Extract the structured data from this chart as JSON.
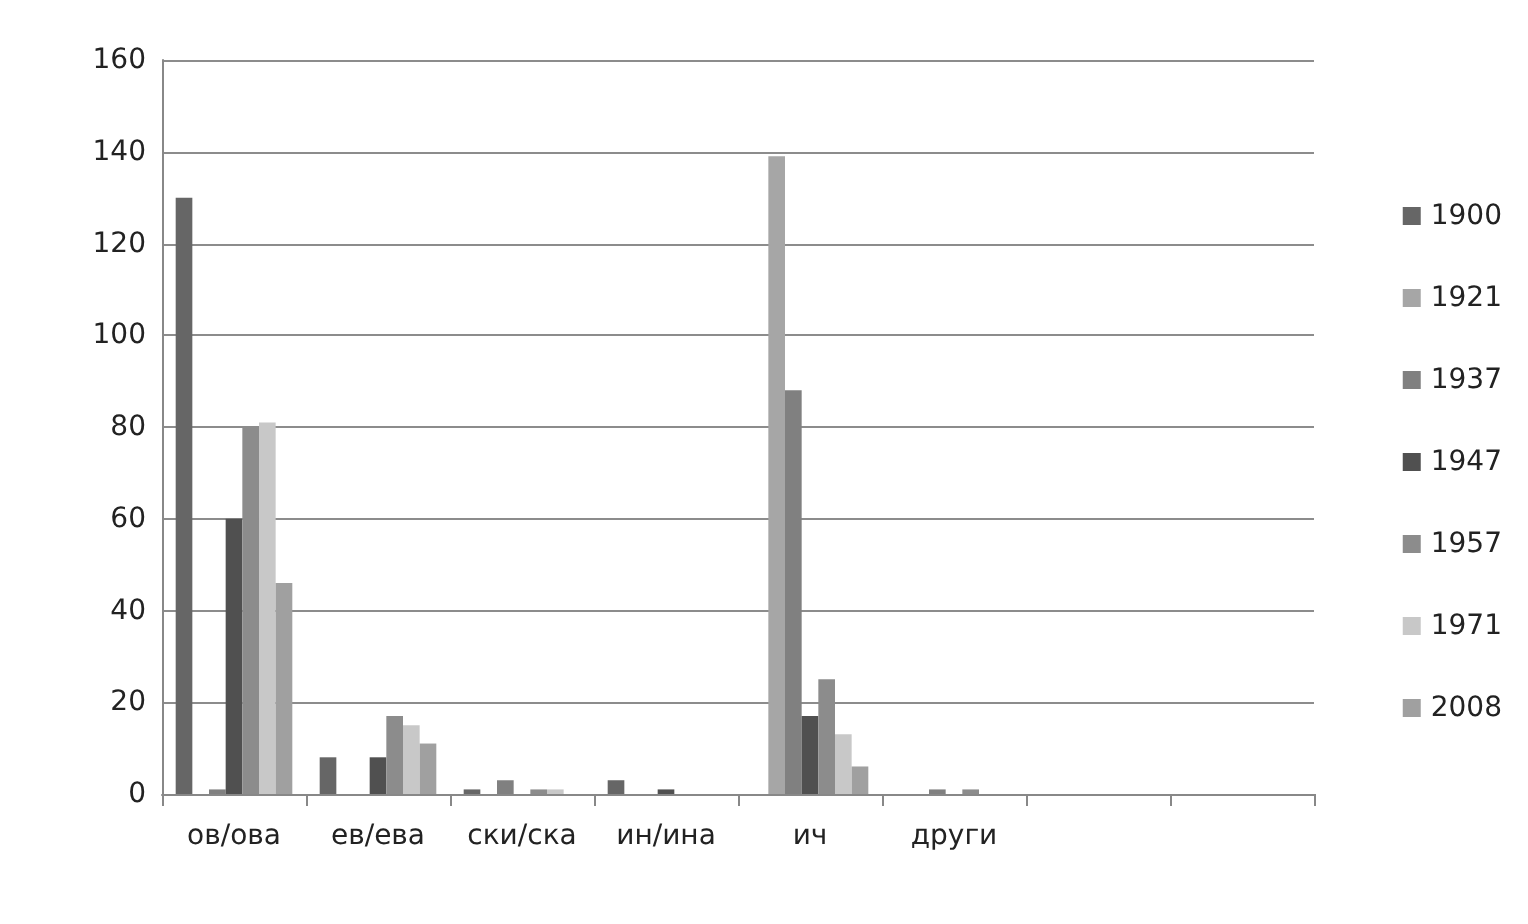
{
  "chart_data": {
    "type": "bar",
    "categories": [
      "ов/ова",
      "ев/ева",
      "ски/ска",
      "ин/ина",
      "ич",
      "други",
      null,
      null
    ],
    "series": [
      {
        "name": "1900",
        "color": "#666666",
        "values": [
          130,
          8,
          1,
          3,
          0,
          0,
          0,
          0
        ]
      },
      {
        "name": "1921",
        "color": "#a6a6a6",
        "values": [
          0,
          0,
          0,
          0,
          139,
          0,
          0,
          0
        ]
      },
      {
        "name": "1937",
        "color": "#808080",
        "values": [
          1,
          0,
          3,
          0,
          88,
          1,
          0,
          0
        ]
      },
      {
        "name": "1947",
        "color": "#505050",
        "values": [
          60,
          8,
          0,
          1,
          17,
          0,
          0,
          0
        ]
      },
      {
        "name": "1957",
        "color": "#8c8c8c",
        "values": [
          80,
          17,
          1,
          0,
          25,
          1,
          0,
          0
        ]
      },
      {
        "name": "1971",
        "color": "#c8c8c8",
        "values": [
          81,
          15,
          1,
          0,
          13,
          0,
          0,
          0
        ]
      },
      {
        "name": "2008",
        "color": "#a0a0a0",
        "values": [
          46,
          11,
          0,
          0,
          6,
          0,
          0,
          0
        ]
      }
    ],
    "ylim": [
      0,
      160
    ],
    "yticks": [
      0,
      20,
      40,
      60,
      80,
      100,
      120,
      140,
      160
    ],
    "grid": "y",
    "legend": "right"
  }
}
